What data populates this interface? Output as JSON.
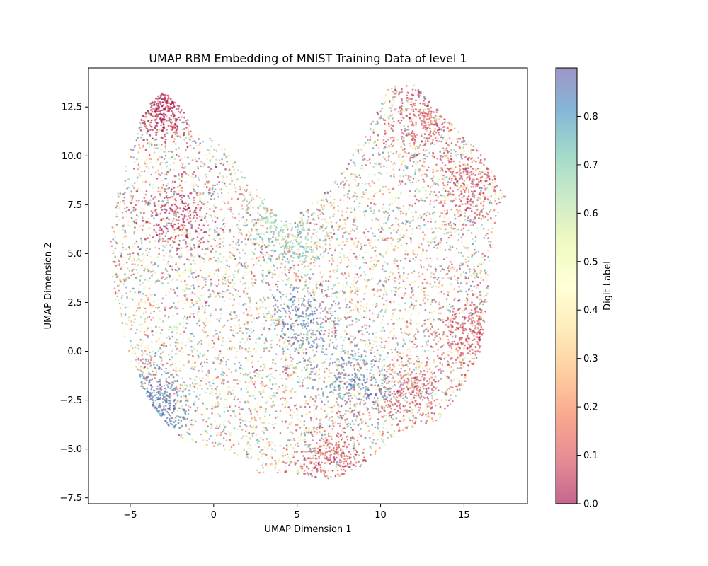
{
  "chart_data": {
    "type": "scatter",
    "title": "UMAP RBM Embedding of MNIST Training Data of level 1",
    "xlabel": "UMAP Dimension 1",
    "ylabel": "UMAP Dimension 2",
    "xlim": [
      -7.5,
      18.8
    ],
    "ylim": [
      -7.8,
      14.5
    ],
    "xticks": [
      -5,
      0,
      5,
      10,
      15
    ],
    "xtick_labels": [
      "−5",
      "0",
      "5",
      "10",
      "15"
    ],
    "yticks": [
      -7.5,
      -5.0,
      -2.5,
      0.0,
      2.5,
      5.0,
      7.5,
      10.0,
      12.5
    ],
    "ytick_labels": [
      "−7.5",
      "−5.0",
      "−2.5",
      "0.0",
      "2.5",
      "5.0",
      "7.5",
      "10.0",
      "12.5"
    ],
    "grid": false,
    "colorbar": {
      "label": "Digit Label",
      "range": [
        0.0,
        0.9
      ],
      "ticks": [
        0.0,
        0.1,
        0.2,
        0.3,
        0.4,
        0.5,
        0.6,
        0.7,
        0.8
      ],
      "tick_labels": [
        "0.0",
        "0.1",
        "0.2",
        "0.3",
        "0.4",
        "0.5",
        "0.6",
        "0.7",
        "0.8"
      ],
      "colormap": "Spectral",
      "colormap_stops": [
        "#9e0142",
        "#d53e4f",
        "#f46d43",
        "#fdae61",
        "#fee08b",
        "#ffffbf",
        "#e6f598",
        "#abdda4",
        "#66c2a5",
        "#3288bd",
        "#5e4fa2"
      ],
      "alpha": 0.6
    },
    "point_outline": [
      [
        -3.0,
        13.3
      ],
      [
        -4.0,
        12.6
      ],
      [
        -5.0,
        10.5
      ],
      [
        -5.8,
        8.0
      ],
      [
        -6.3,
        5.5
      ],
      [
        -6.0,
        3.0
      ],
      [
        -5.3,
        0.5
      ],
      [
        -4.6,
        -1.5
      ],
      [
        -3.5,
        -3.0
      ],
      [
        -2.0,
        -4.5
      ],
      [
        0.5,
        -5.0
      ],
      [
        2.0,
        -5.5
      ],
      [
        2.5,
        -6.2
      ],
      [
        5.0,
        -6.3
      ],
      [
        7.0,
        -6.6
      ],
      [
        9.0,
        -5.8
      ],
      [
        10.0,
        -5.0
      ],
      [
        11.5,
        -4.0
      ],
      [
        13.5,
        -3.5
      ],
      [
        14.8,
        -2.0
      ],
      [
        16.0,
        0.0
      ],
      [
        16.4,
        2.5
      ],
      [
        16.6,
        5.0
      ],
      [
        17.2,
        7.5
      ],
      [
        17.5,
        8.0
      ],
      [
        16.0,
        10.2
      ],
      [
        14.5,
        11.5
      ],
      [
        13.0,
        12.7
      ],
      [
        12.0,
        13.7
      ],
      [
        10.5,
        13.5
      ],
      [
        9.2,
        11.2
      ],
      [
        8.2,
        10.0
      ],
      [
        7.5,
        9.0
      ],
      [
        6.5,
        8.0
      ],
      [
        5.5,
        7.5
      ],
      [
        4.8,
        6.5
      ],
      [
        4.0,
        6.8
      ],
      [
        3.2,
        7.6
      ],
      [
        2.4,
        8.5
      ],
      [
        1.6,
        9.7
      ],
      [
        0.5,
        10.5
      ],
      [
        -1.0,
        11.3
      ],
      [
        -2.0,
        12.5
      ]
    ],
    "dense_clusters": [
      {
        "x": -2.0,
        "y": 7.0,
        "value": 0.0
      },
      {
        "x": -3.0,
        "y": 12.8,
        "value": 0.0
      },
      {
        "x": 12.5,
        "y": 12.0,
        "value": 0.08
      },
      {
        "x": 15.5,
        "y": 8.5,
        "value": 0.08
      },
      {
        "x": 15.8,
        "y": 1.0,
        "value": 0.08
      },
      {
        "x": 12.0,
        "y": -2.0,
        "value": 0.08
      },
      {
        "x": 7.0,
        "y": -5.5,
        "value": 0.08
      },
      {
        "x": 5.5,
        "y": 1.5,
        "value": 0.85
      },
      {
        "x": 8.5,
        "y": -1.5,
        "value": 0.85
      },
      {
        "x": 4.5,
        "y": 6.0,
        "value": 0.7
      },
      {
        "x": -4.0,
        "y": -3.0,
        "value": 0.85
      }
    ]
  }
}
